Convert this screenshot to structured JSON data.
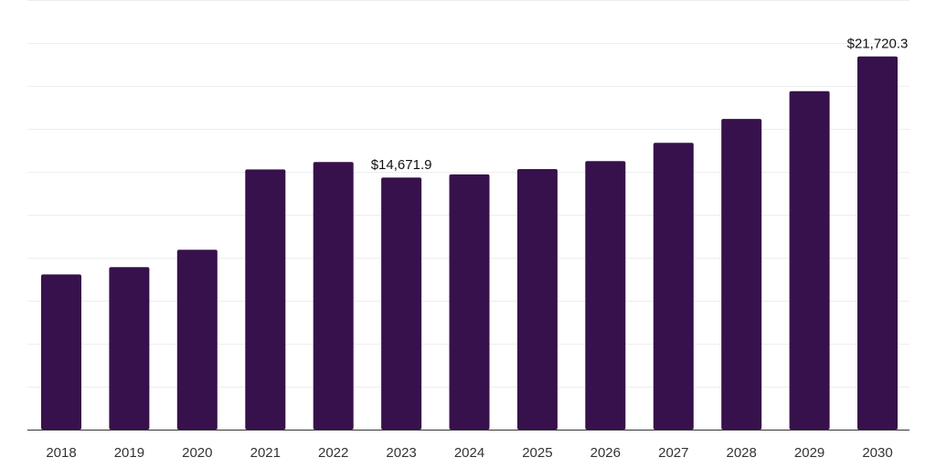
{
  "chart_data": {
    "type": "bar",
    "title": "",
    "xlabel": "",
    "ylabel": "",
    "categories": [
      "2018",
      "2019",
      "2020",
      "2021",
      "2022",
      "2023",
      "2024",
      "2025",
      "2026",
      "2027",
      "2028",
      "2029",
      "2030"
    ],
    "values": [
      9030,
      9450,
      10470,
      15140,
      15570,
      14671.9,
      14850,
      15160,
      15620,
      16690,
      18080,
      19690,
      21720.3
    ],
    "data_labels": [
      {
        "index": 5,
        "text": "$14,671.9"
      },
      {
        "index": 12,
        "text": "$21,720.3"
      }
    ],
    "ylim": [
      0,
      25000
    ],
    "grid": true,
    "legend": "none",
    "bar_color": "#37114b"
  }
}
